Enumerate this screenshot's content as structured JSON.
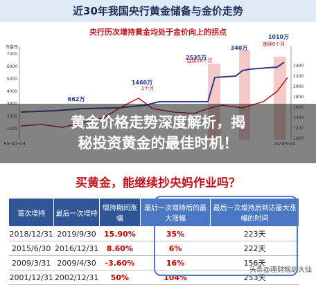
{
  "header": {
    "title": "近30年我国央行黄金储备与金价走势"
  },
  "chart": {
    "subtitle": "央行历次增持黄金均处于金价向上的拐点",
    "left_unit": "万盎司",
    "left_ticks": [
      "7000",
      "6000",
      "5000",
      "4000",
      "3000",
      "2000",
      "1000"
    ],
    "right_ticks": [
      "2400",
      "2200",
      "2000",
      "1800",
      "1600",
      "1400",
      "1200",
      "1000"
    ],
    "annotations": [
      "662万",
      "1460万",
      "2535万",
      "340万",
      "1010万"
    ],
    "callouts": [
      "1个月",
      "连续16个月",
      "连续6个月"
    ],
    "x_labels": [
      "95-01-03",
      "24-05-24"
    ]
  },
  "overlay": {
    "lines": [
      "黄金价格走势深度解析，揭",
      "秘投资黄金的最佳时机！"
    ]
  },
  "section": {
    "title": "买黄金，能继续抄央妈作业吗？"
  },
  "table": {
    "header": [
      "首次增持",
      "最后一次增持",
      "增持期间涨幅",
      "最后一次增持后的最大涨幅",
      "最后一次增持后到达最大涨幅的时间"
    ],
    "rows": [
      [
        "2018/12/31",
        "2019/9/30",
        "15.90%",
        "35%",
        "223天"
      ],
      [
        "2015/6/30",
        "2016/12/31",
        "8.60%",
        "6%",
        "222天"
      ],
      [
        "2009/3/31",
        "2009/4/30",
        "-3.60%",
        "16%",
        "156天"
      ],
      [
        "2001/12/31",
        "2002/12/31",
        "50%",
        "104%",
        "253天"
      ]
    ]
  },
  "watermark": "头条@理财规划大仙"
}
